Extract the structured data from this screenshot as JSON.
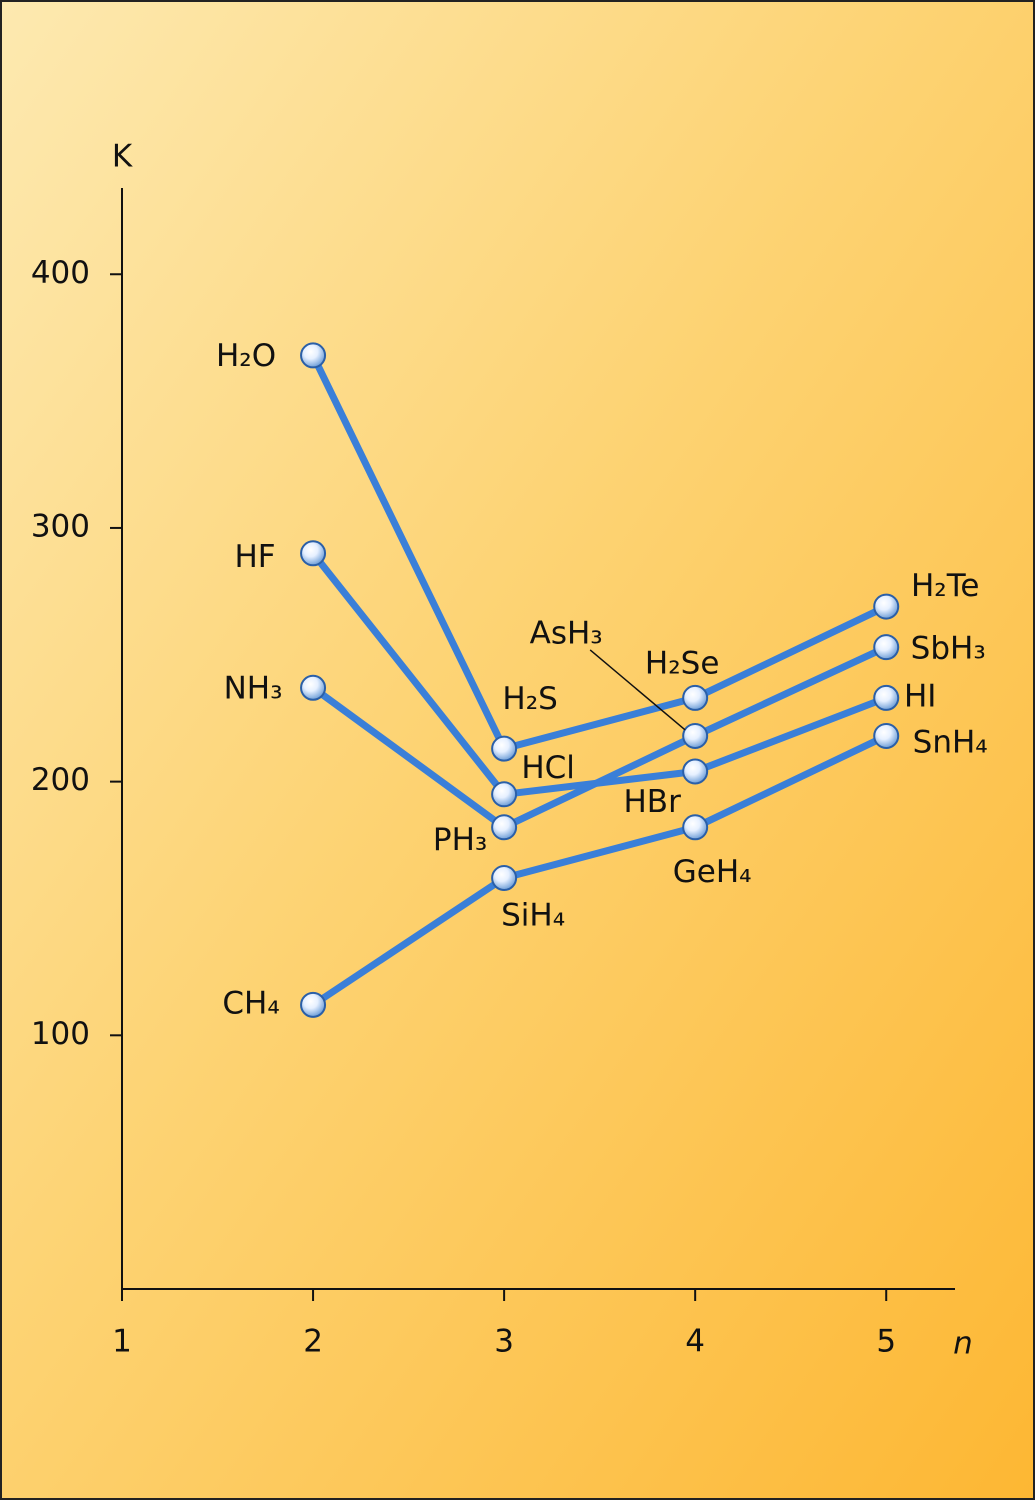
{
  "chart_data": {
    "type": "line",
    "y_label": "K",
    "x_label": "n",
    "xlim": [
      1,
      5.36
    ],
    "xticks": [
      1,
      2,
      3,
      4,
      5
    ],
    "ylim": [
      0,
      434
    ],
    "yticks": [
      100,
      200,
      300,
      400
    ],
    "series": [
      {
        "color": "#3a7fd8",
        "x": [
          2,
          3,
          4,
          5
        ],
        "values": [
          368,
          213,
          233,
          269
        ],
        "labels": [
          "H₂O",
          "H₂S",
          "H₂Se",
          "H₂Te"
        ]
      },
      {
        "color": "#3a7fd8",
        "x": [
          2,
          3,
          4,
          5
        ],
        "values": [
          290,
          195,
          204,
          233
        ],
        "labels": [
          "HF",
          "HCl",
          "HBr",
          "HI"
        ]
      },
      {
        "color": "#3a7fd8",
        "x": [
          2,
          3,
          4,
          5
        ],
        "values": [
          237,
          182,
          218,
          253
        ],
        "labels": [
          "NH₃",
          "PH₃",
          "AsH₃",
          "SbH₃"
        ]
      },
      {
        "color": "#3a7fd8",
        "x": [
          2,
          3,
          4,
          5
        ],
        "values": [
          112,
          162,
          182,
          218
        ],
        "labels": [
          "CH₄",
          "SiH₄",
          "GeH₄",
          "SnH₄"
        ]
      }
    ]
  }
}
